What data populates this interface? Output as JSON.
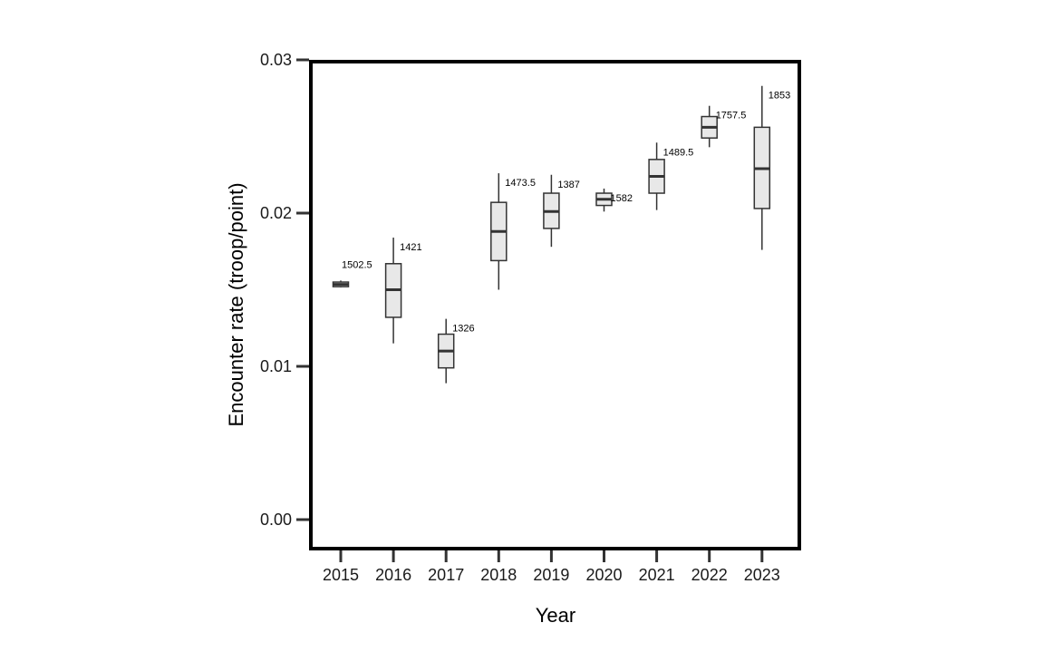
{
  "chart_data": {
    "type": "box",
    "title": "",
    "xlabel": "Year",
    "ylabel": "Encounter rate (troop/point)",
    "ylim": [
      -0.0019,
      0.03
    ],
    "y_ticks": [
      {
        "value": 0.0,
        "label": "0.00"
      },
      {
        "value": 0.01,
        "label": "0.01"
      },
      {
        "value": 0.02,
        "label": "0.02"
      },
      {
        "value": 0.03,
        "label": "0.03"
      }
    ],
    "grid": false,
    "box_fill": "#e8e8e8",
    "stroke": "#333333",
    "categories": [
      "2015",
      "2016",
      "2017",
      "2018",
      "2019",
      "2020",
      "2021",
      "2022",
      "2023"
    ],
    "boxes": [
      {
        "year": "2015",
        "whisker_low": 0.01515,
        "q1": 0.0152,
        "median": 0.01535,
        "q3": 0.0155,
        "whisker_high": 0.0156,
        "label": "1502.5"
      },
      {
        "year": "2016",
        "whisker_low": 0.0115,
        "q1": 0.0132,
        "median": 0.015,
        "q3": 0.0167,
        "whisker_high": 0.0184,
        "label": "1421"
      },
      {
        "year": "2017",
        "whisker_low": 0.0089,
        "q1": 0.0099,
        "median": 0.011,
        "q3": 0.0121,
        "whisker_high": 0.0131,
        "label": "1326"
      },
      {
        "year": "2018",
        "whisker_low": 0.015,
        "q1": 0.0169,
        "median": 0.0188,
        "q3": 0.0207,
        "whisker_high": 0.0226,
        "label": "1473.5"
      },
      {
        "year": "2019",
        "whisker_low": 0.0178,
        "q1": 0.019,
        "median": 0.0201,
        "q3": 0.0213,
        "whisker_high": 0.0225,
        "label": "1387"
      },
      {
        "year": "2020",
        "whisker_low": 0.0201,
        "q1": 0.0205,
        "median": 0.0209,
        "q3": 0.0213,
        "whisker_high": 0.0216,
        "label": "1582"
      },
      {
        "year": "2021",
        "whisker_low": 0.0202,
        "q1": 0.0213,
        "median": 0.0224,
        "q3": 0.0235,
        "whisker_high": 0.0246,
        "label": "1489.5"
      },
      {
        "year": "2022",
        "whisker_low": 0.0243,
        "q1": 0.0249,
        "median": 0.0256,
        "q3": 0.0263,
        "whisker_high": 0.027,
        "label": "1757.5"
      },
      {
        "year": "2023",
        "whisker_low": 0.0176,
        "q1": 0.0203,
        "median": 0.0229,
        "q3": 0.0256,
        "whisker_high": 0.0283,
        "label": "1853"
      }
    ]
  }
}
